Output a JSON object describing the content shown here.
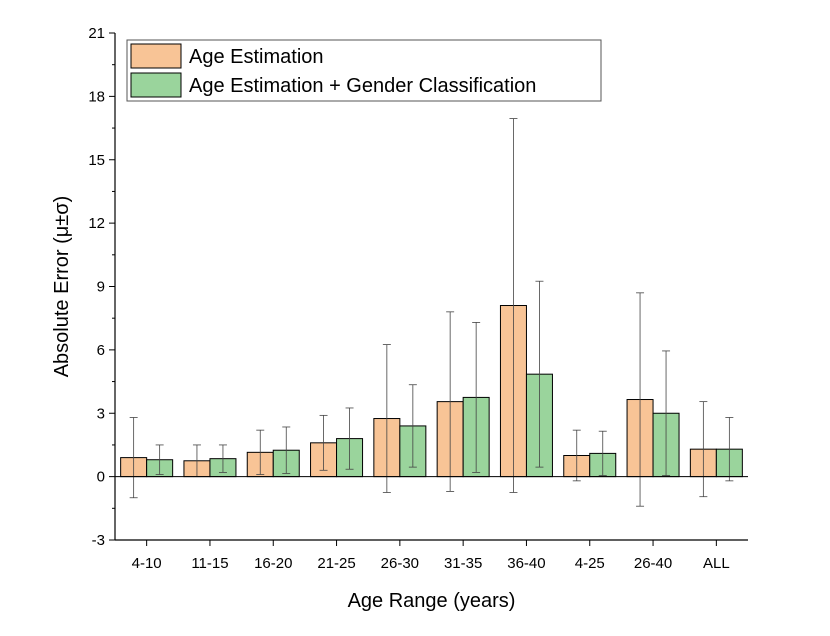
{
  "chart_data": {
    "type": "bar",
    "title": "",
    "xlabel": "Age Range (years)",
    "ylabel": "Absolute Error (μ±σ)",
    "ylim": [
      -3,
      21
    ],
    "yticks": [
      -3,
      0,
      3,
      6,
      9,
      12,
      15,
      18,
      21
    ],
    "grid": false,
    "legend_position": "top-left",
    "categories": [
      "4-10",
      "11-15",
      "16-20",
      "21-25",
      "26-30",
      "31-35",
      "36-40",
      "4-25",
      "26-40",
      "ALL"
    ],
    "series": [
      {
        "name": "Age Estimation",
        "color": "#f8c496",
        "values": [
          0.9,
          0.75,
          1.15,
          1.6,
          2.75,
          3.55,
          8.1,
          1.0,
          3.65,
          1.3
        ],
        "errors": [
          1.9,
          0.75,
          1.05,
          1.3,
          3.5,
          4.25,
          8.85,
          1.2,
          5.05,
          2.25
        ]
      },
      {
        "name": "Age Estimation + Gender Classification",
        "color": "#9ad49c",
        "values": [
          0.8,
          0.85,
          1.25,
          1.8,
          2.4,
          3.75,
          4.85,
          1.1,
          3.0,
          1.3
        ],
        "errors": [
          0.7,
          0.65,
          1.1,
          1.45,
          1.95,
          3.55,
          4.4,
          1.05,
          2.95,
          1.5
        ]
      }
    ]
  }
}
